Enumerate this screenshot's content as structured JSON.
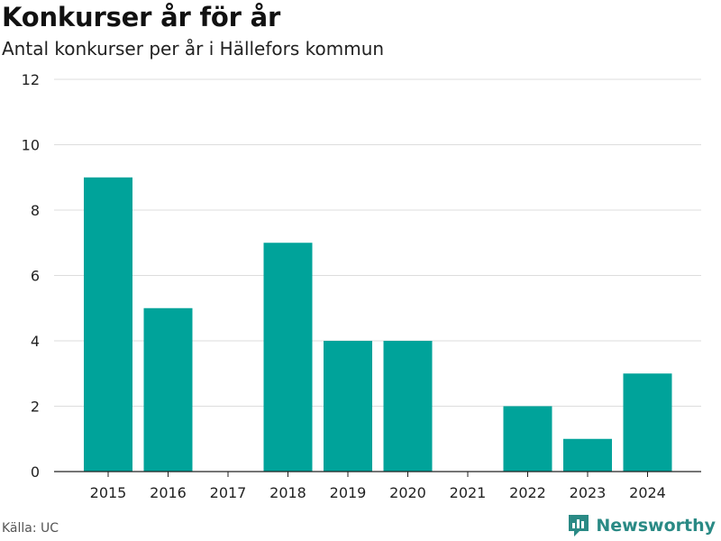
{
  "title": "Konkurser år för år",
  "subtitle": "Antal konkurser per år i Hällefors kommun",
  "source": "Källa: UC",
  "brand": "Newsworthy",
  "colors": {
    "bar": "#00a39a",
    "grid": "#dddddd",
    "axis": "#222222",
    "brand": "#2a8a85"
  },
  "chart_data": {
    "type": "bar",
    "categories": [
      "2015",
      "2016",
      "2017",
      "2018",
      "2019",
      "2020",
      "2021",
      "2022",
      "2023",
      "2024"
    ],
    "values": [
      9,
      5,
      0,
      7,
      4,
      4,
      0,
      2,
      1,
      3
    ],
    "yticks": [
      "0",
      "2",
      "4",
      "6",
      "8",
      "10",
      "12"
    ],
    "ylim": [
      0,
      12
    ],
    "grid": true
  }
}
